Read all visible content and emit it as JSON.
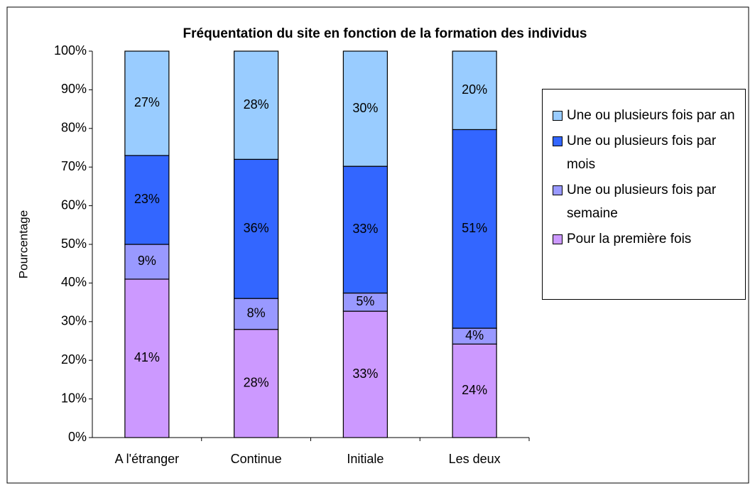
{
  "chart_data": {
    "type": "stacked_bar",
    "title": "Fréquentation du site en fonction de la formation des individus",
    "y_label": "Pourcentage",
    "categories": [
      "A l'étranger",
      "Continue",
      "Initiale",
      "Les deux"
    ],
    "series": [
      {
        "name": "Pour la première fois",
        "color": "#cc99ff",
        "values": [
          41,
          28,
          32.7,
          24.2
        ],
        "value_labels": [
          "41%",
          "28%",
          "33%",
          "24%"
        ]
      },
      {
        "name": "Une ou plusieurs fois par semaine",
        "color": "#9999ff",
        "values": [
          9,
          8,
          4.7,
          4.1
        ],
        "value_labels": [
          "9%",
          "8%",
          "5%",
          "4%"
        ]
      },
      {
        "name": "Une ou plusieurs fois par mois",
        "color": "#3366ff",
        "values": [
          23,
          36,
          32.8,
          51.4
        ],
        "value_labels": [
          "23%",
          "36%",
          "33%",
          "51%"
        ]
      },
      {
        "name": "Une ou plusieurs fois par an",
        "color": "#99ccff",
        "values": [
          27,
          28,
          29.8,
          20.3
        ],
        "value_labels": [
          "27%",
          "28%",
          "30%",
          "20%"
        ]
      }
    ],
    "ylim": [
      0,
      100
    ],
    "yticks": [
      {
        "value": 0,
        "label": "0%"
      },
      {
        "value": 10,
        "label": "10%"
      },
      {
        "value": 20,
        "label": "20%"
      },
      {
        "value": 30,
        "label": "30%"
      },
      {
        "value": 40,
        "label": "40%"
      },
      {
        "value": 50,
        "label": "50%"
      },
      {
        "value": 60,
        "label": "60%"
      },
      {
        "value": 70,
        "label": "70%"
      },
      {
        "value": 80,
        "label": "80%"
      },
      {
        "value": 90,
        "label": "90%"
      },
      {
        "value": 100,
        "label": "100%"
      }
    ],
    "grid": false,
    "legend": "right"
  }
}
